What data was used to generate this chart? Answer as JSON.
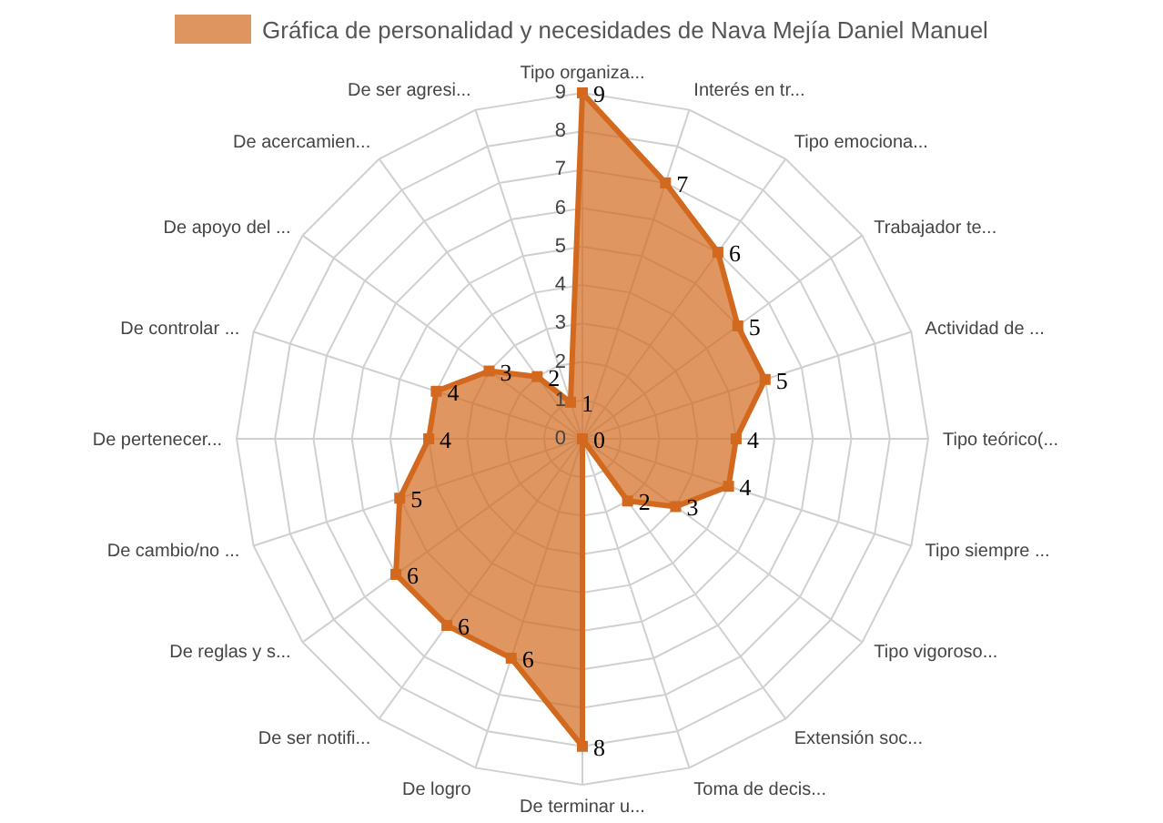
{
  "chart_data": {
    "type": "radar",
    "categories": [
      "Tipo organiza...",
      "Interés en tr...",
      "Tipo emociona...",
      "Trabajador te...",
      "Actividad de ...",
      "Tipo teórico(...",
      "Tipo siempre ...",
      "Tipo vigoroso...",
      "Extensión soc...",
      "Toma de decis...",
      "De terminar u...",
      "De logro",
      "De ser notifi...",
      "De reglas y s...",
      "De cambio/no ...",
      "De pertenecer...",
      "De controlar ...",
      "De apoyo del ...",
      "De acercamien...",
      "De ser agresi..."
    ],
    "series": [
      {
        "name": "Gráfica de personalidad y necesidades de Nava Mejía Daniel Manuel",
        "color": "#d2691e",
        "values": [
          9,
          7,
          6,
          5,
          5,
          4,
          4,
          3,
          2,
          0,
          8,
          6,
          6,
          6,
          5,
          4,
          4,
          3,
          2,
          1
        ]
      }
    ],
    "ylim": [
      0,
      9
    ],
    "yticks": [
      0,
      1,
      2,
      3,
      4,
      5,
      6,
      7,
      8,
      9
    ],
    "grid": true,
    "legend": "top",
    "marker": "square",
    "data_labels": true
  }
}
